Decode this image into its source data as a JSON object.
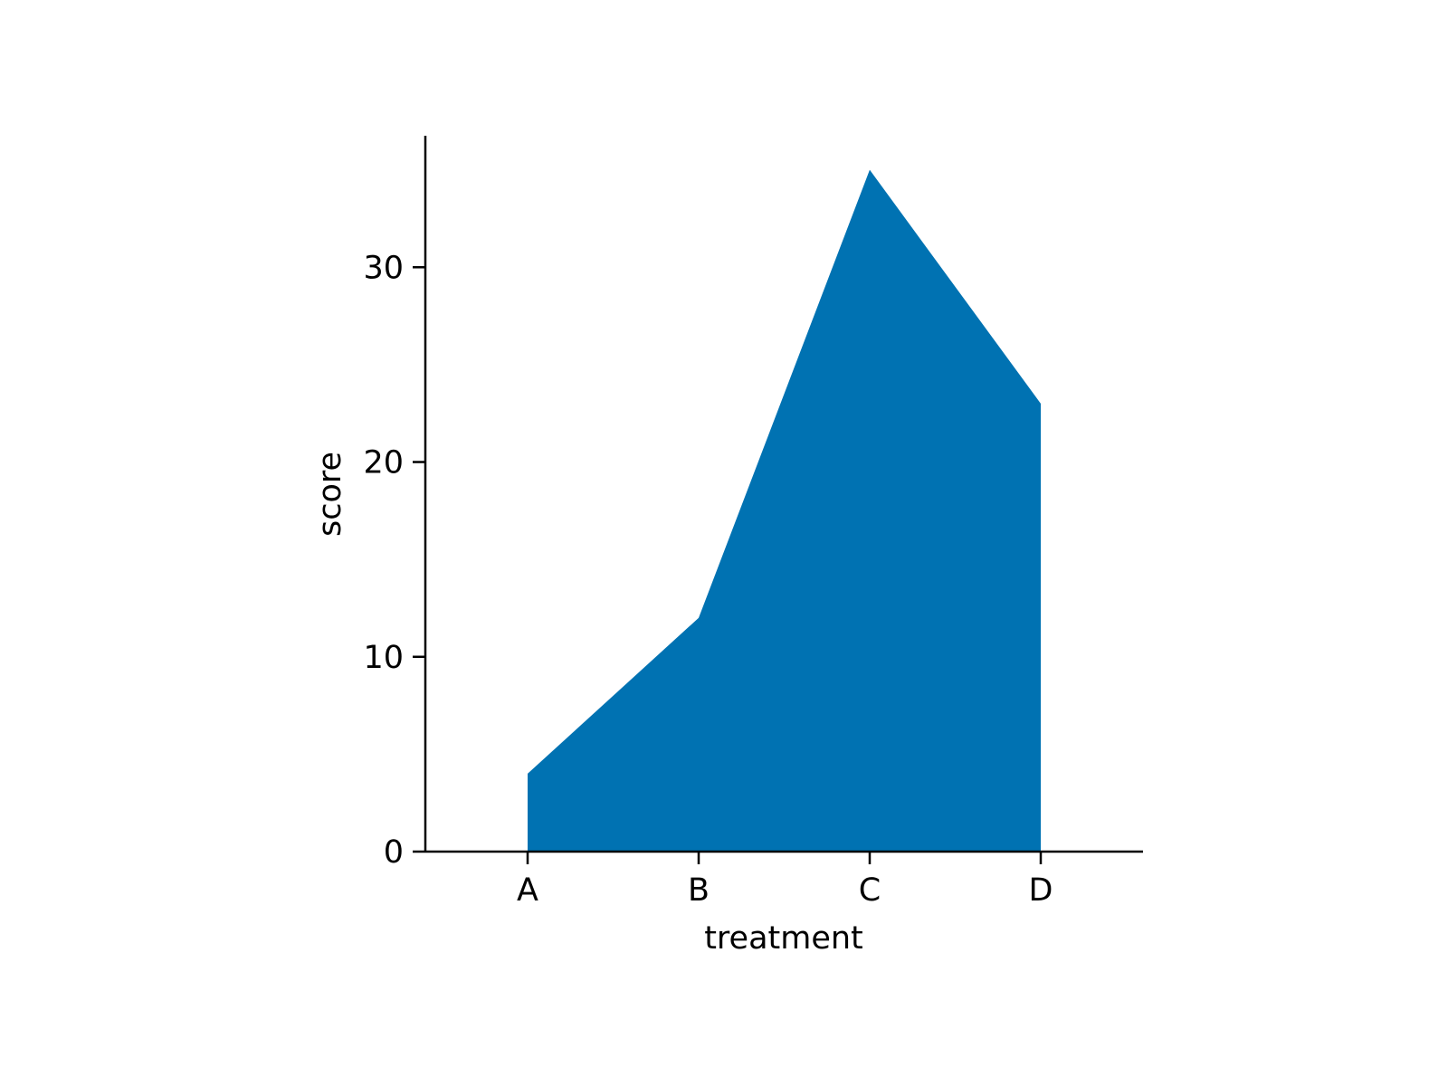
{
  "chart_data": {
    "type": "area",
    "categories": [
      "A",
      "B",
      "C",
      "D"
    ],
    "values": [
      4,
      12,
      35,
      23
    ],
    "title": "",
    "xlabel": "treatment",
    "ylabel": "score",
    "ylim": [
      0,
      36.75
    ],
    "yticks": [
      0,
      10,
      20,
      30
    ],
    "grid": false,
    "colors": {
      "fill": "#0072b2"
    }
  }
}
